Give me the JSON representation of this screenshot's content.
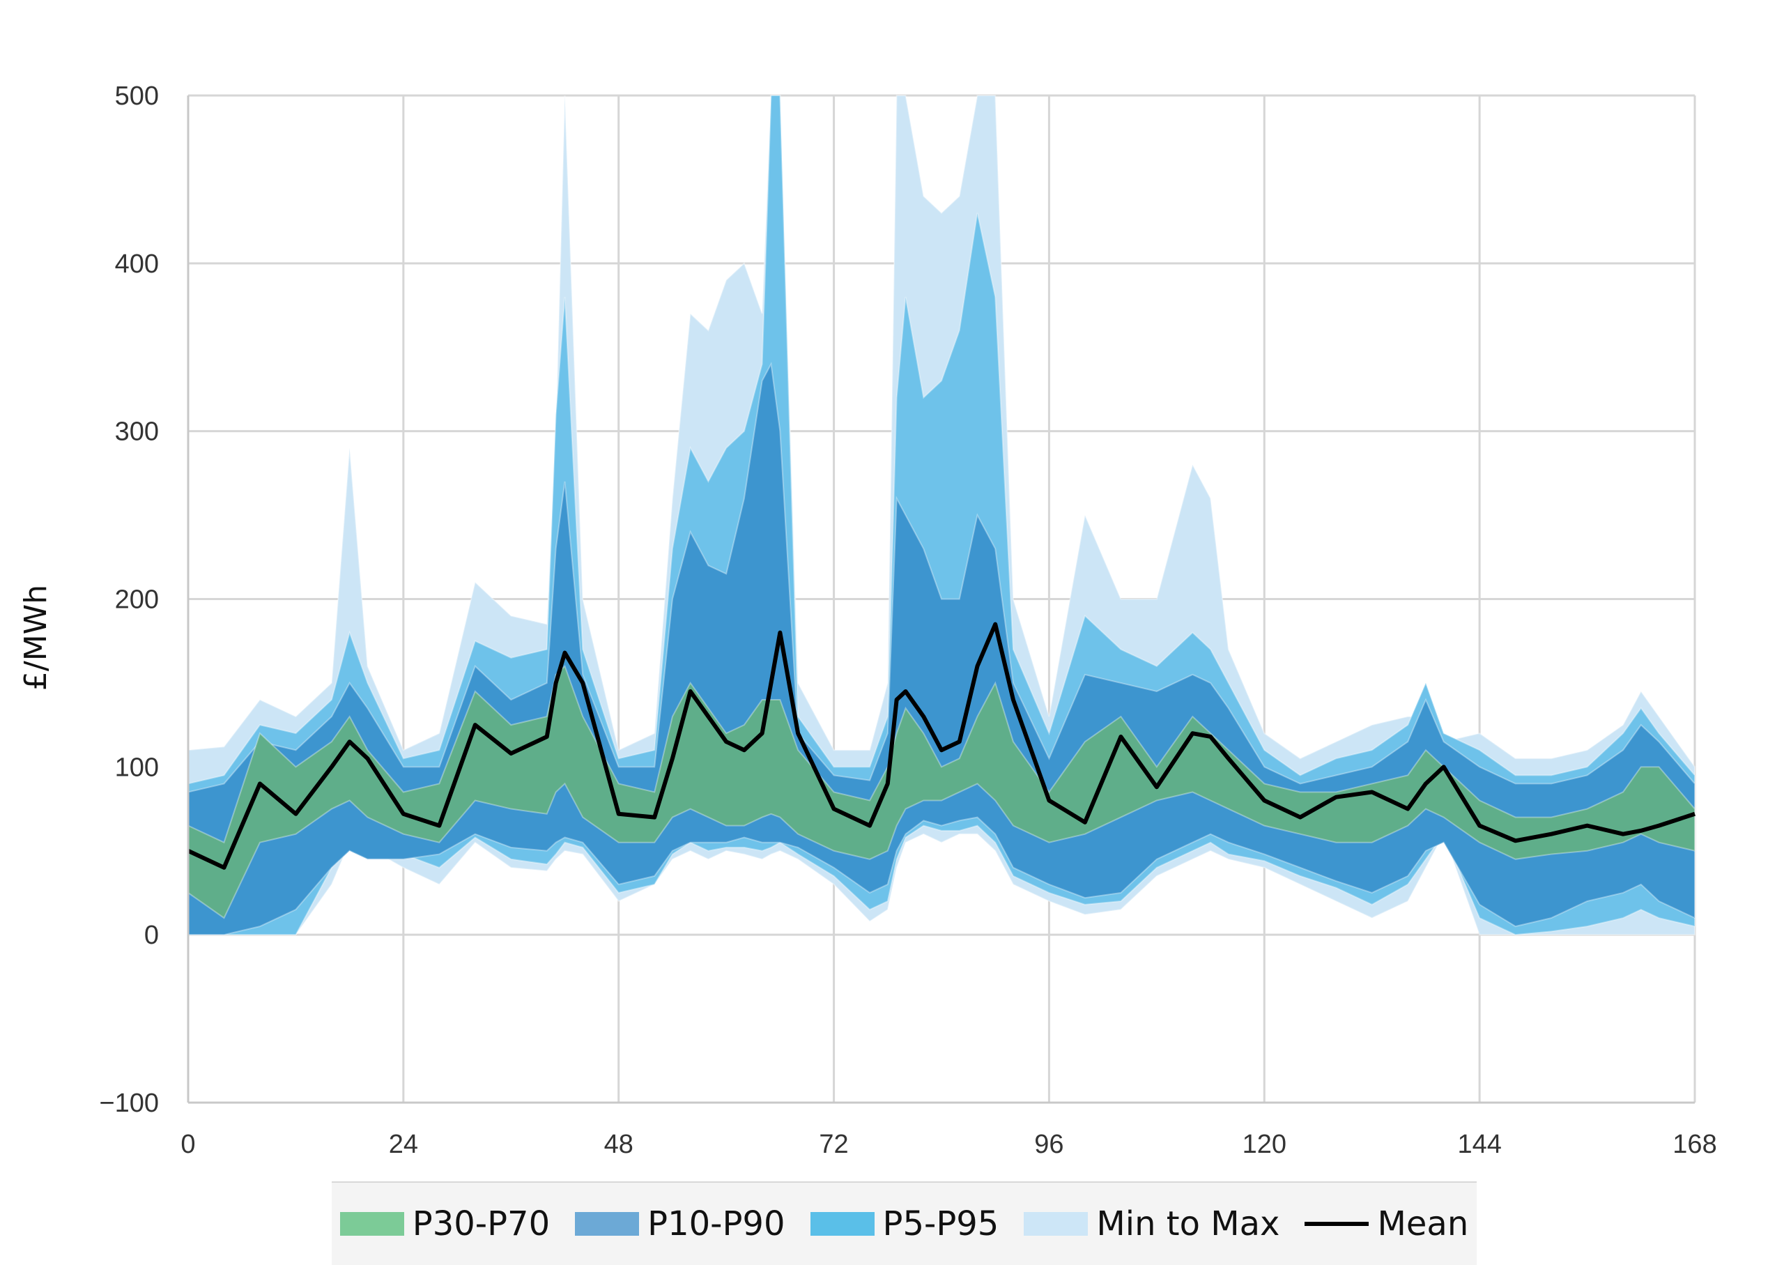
{
  "chart_data": {
    "type": "area",
    "ylabel": "£/MWh",
    "xlabel": "",
    "xlim": [
      0,
      168
    ],
    "ylim": [
      -100,
      500
    ],
    "xticks": [
      0,
      24,
      48,
      72,
      96,
      120,
      144,
      168
    ],
    "yticks": [
      -100,
      0,
      100,
      200,
      300,
      400,
      500
    ],
    "grid": true,
    "legend_position": "bottom",
    "x": [
      0,
      4,
      8,
      12,
      16,
      18,
      20,
      24,
      28,
      32,
      36,
      40,
      41,
      42,
      44,
      48,
      52,
      54,
      56,
      58,
      60,
      62,
      64,
      65,
      66,
      68,
      72,
      76,
      78,
      79,
      80,
      82,
      84,
      86,
      88,
      90,
      92,
      96,
      100,
      104,
      108,
      112,
      114,
      116,
      120,
      124,
      128,
      132,
      136,
      138,
      140,
      144,
      148,
      152,
      156,
      160,
      162,
      164,
      168
    ],
    "bands": [
      {
        "name": "Min to Max",
        "color": "#cce5f6",
        "low": [
          0,
          0,
          0,
          0,
          30,
          55,
          52,
          40,
          30,
          55,
          40,
          38,
          45,
          50,
          48,
          20,
          30,
          45,
          50,
          45,
          50,
          48,
          45,
          48,
          50,
          45,
          30,
          8,
          15,
          40,
          55,
          60,
          55,
          60,
          60,
          50,
          30,
          20,
          12,
          15,
          35,
          45,
          50,
          45,
          40,
          30,
          20,
          10,
          20,
          40,
          60,
          0,
          0,
          0,
          0,
          0,
          0,
          0,
          0
        ],
        "high": [
          110,
          112,
          140,
          130,
          150,
          290,
          160,
          110,
          120,
          210,
          190,
          185,
          300,
          500,
          200,
          110,
          120,
          260,
          370,
          360,
          390,
          400,
          370,
          500,
          500,
          150,
          110,
          110,
          150,
          500,
          500,
          440,
          430,
          440,
          500,
          500,
          200,
          130,
          250,
          200,
          200,
          280,
          260,
          170,
          120,
          105,
          115,
          125,
          130,
          130,
          115,
          120,
          105,
          105,
          110,
          125,
          145,
          130,
          100
        ]
      },
      {
        "name": "P5-P95",
        "color": "#6ec2ea",
        "low": [
          0,
          0,
          0,
          0,
          40,
          55,
          52,
          48,
          40,
          58,
          45,
          42,
          48,
          55,
          52,
          25,
          30,
          48,
          55,
          50,
          52,
          52,
          50,
          52,
          55,
          48,
          35,
          15,
          20,
          45,
          58,
          65,
          62,
          62,
          65,
          55,
          35,
          25,
          18,
          20,
          40,
          50,
          55,
          48,
          44,
          35,
          28,
          18,
          30,
          45,
          60,
          10,
          0,
          2,
          5,
          10,
          15,
          10,
          5
        ],
        "high": [
          90,
          95,
          125,
          120,
          140,
          180,
          150,
          105,
          110,
          175,
          165,
          170,
          310,
          380,
          170,
          105,
          110,
          230,
          290,
          270,
          290,
          300,
          340,
          500,
          500,
          130,
          100,
          100,
          130,
          320,
          380,
          320,
          330,
          360,
          430,
          380,
          170,
          120,
          190,
          170,
          160,
          180,
          170,
          150,
          110,
          95,
          105,
          110,
          125,
          150,
          120,
          110,
          95,
          95,
          100,
          120,
          135,
          120,
          95
        ]
      },
      {
        "name": "P10-P90",
        "color": "#3d95cf",
        "low": [
          0,
          0,
          5,
          15,
          40,
          50,
          45,
          45,
          48,
          60,
          52,
          50,
          55,
          58,
          55,
          30,
          35,
          50,
          55,
          55,
          55,
          58,
          55,
          55,
          55,
          52,
          40,
          25,
          30,
          50,
          60,
          68,
          65,
          68,
          70,
          60,
          40,
          30,
          22,
          25,
          45,
          55,
          60,
          55,
          48,
          40,
          32,
          25,
          35,
          50,
          55,
          18,
          5,
          10,
          20,
          25,
          30,
          20,
          10
        ],
        "high": [
          85,
          90,
          115,
          110,
          130,
          150,
          135,
          100,
          100,
          160,
          140,
          150,
          230,
          270,
          155,
          100,
          100,
          200,
          240,
          220,
          215,
          260,
          330,
          340,
          300,
          120,
          95,
          92,
          120,
          260,
          250,
          230,
          200,
          200,
          250,
          230,
          150,
          105,
          155,
          150,
          145,
          155,
          150,
          135,
          100,
          90,
          95,
          100,
          115,
          140,
          115,
          100,
          90,
          90,
          95,
          110,
          125,
          115,
          90
        ]
      },
      {
        "name": "P30-P70",
        "color": "#5fae8a",
        "low": [
          25,
          10,
          55,
          60,
          75,
          80,
          70,
          60,
          55,
          80,
          75,
          72,
          85,
          90,
          70,
          55,
          55,
          70,
          75,
          70,
          65,
          65,
          70,
          72,
          70,
          60,
          50,
          45,
          50,
          65,
          75,
          80,
          80,
          85,
          90,
          80,
          65,
          55,
          60,
          70,
          80,
          85,
          80,
          75,
          65,
          60,
          55,
          55,
          65,
          75,
          70,
          55,
          45,
          48,
          50,
          55,
          60,
          55,
          50
        ],
        "high": [
          65,
          55,
          120,
          100,
          115,
          130,
          110,
          85,
          90,
          145,
          125,
          130,
          155,
          160,
          130,
          90,
          85,
          130,
          150,
          135,
          120,
          125,
          140,
          140,
          140,
          110,
          85,
          80,
          100,
          120,
          135,
          120,
          100,
          105,
          130,
          150,
          115,
          85,
          115,
          130,
          100,
          130,
          120,
          110,
          90,
          85,
          85,
          90,
          95,
          110,
          100,
          80,
          70,
          70,
          75,
          85,
          100,
          100,
          75
        ]
      }
    ],
    "series": [
      {
        "name": "Mean",
        "color": "#000000",
        "values": [
          50,
          40,
          90,
          72,
          100,
          115,
          105,
          72,
          65,
          125,
          108,
          118,
          150,
          168,
          150,
          72,
          70,
          105,
          145,
          130,
          115,
          110,
          120,
          150,
          180,
          120,
          75,
          65,
          90,
          140,
          145,
          130,
          110,
          115,
          160,
          185,
          140,
          80,
          67,
          118,
          88,
          120,
          118,
          105,
          80,
          70,
          82,
          85,
          75,
          90,
          100,
          65,
          56,
          60,
          65,
          60,
          62,
          65,
          72
        ]
      }
    ],
    "legend": [
      "P30-P70",
      "P10-P90",
      "P5-P95",
      "Min to Max",
      "Mean"
    ]
  }
}
